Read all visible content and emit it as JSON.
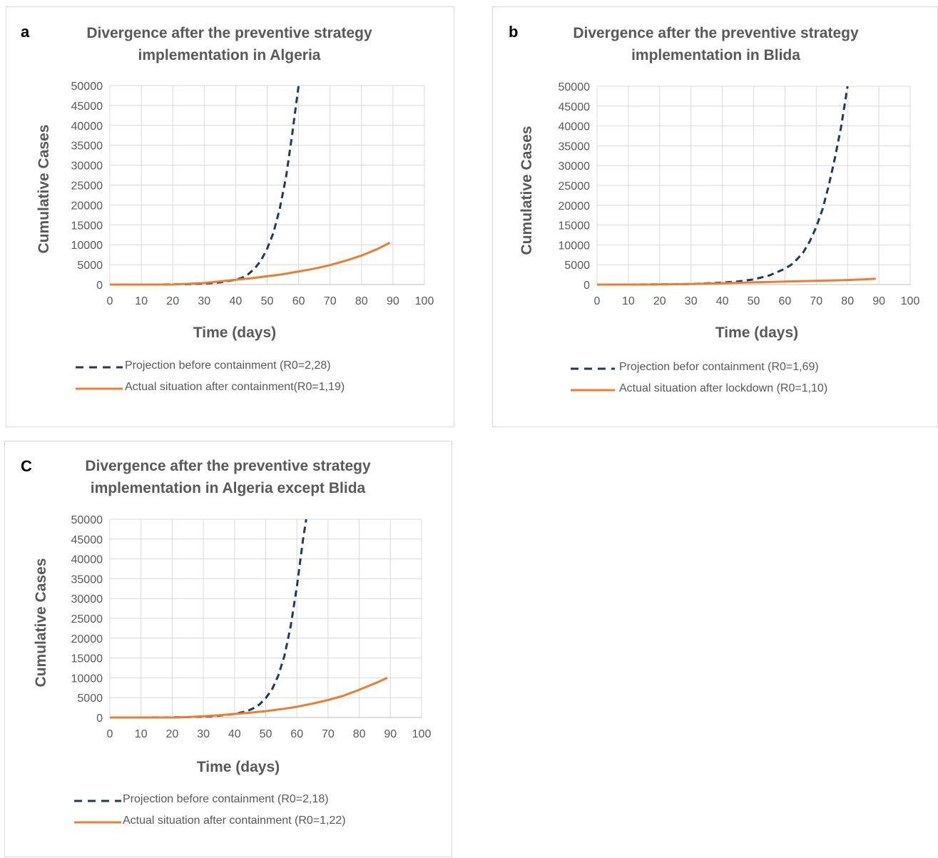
{
  "chart_data": [
    {
      "type": "line",
      "panel_label": "a",
      "title_lines": [
        "Divergence after the preventive strategy",
        "implementation in Algeria"
      ],
      "xlabel": "Time (days)",
      "ylabel": "Cumulative Cases",
      "xlim": [
        0,
        100
      ],
      "ylim": [
        0,
        50000
      ],
      "xticks": [
        "0",
        "10",
        "20",
        "30",
        "40",
        "50",
        "60",
        "70",
        "80",
        "90",
        "100"
      ],
      "yticks": [
        "0",
        "5000",
        "10000",
        "15000",
        "20000",
        "25000",
        "30000",
        "35000",
        "40000",
        "45000",
        "50000"
      ],
      "grid": true,
      "legend_position": "bottom",
      "series": [
        {
          "name": "Projection before containment (R0=2,28)",
          "style": "dashed",
          "color": "#1f3864",
          "x": [
            0,
            5,
            10,
            15,
            20,
            25,
            30,
            35,
            40,
            42,
            44,
            46,
            48,
            50,
            52,
            54,
            56,
            58,
            60
          ],
          "y": [
            0,
            0,
            0,
            0,
            50,
            100,
            250,
            550,
            1200,
            1700,
            2600,
            4000,
            6000,
            9000,
            13000,
            19000,
            27000,
            38000,
            50000
          ]
        },
        {
          "name": "Actual situation after containment(R0=1,19)",
          "style": "solid",
          "color": "#ed7d31",
          "x": [
            0,
            10,
            20,
            25,
            30,
            35,
            40,
            45,
            50,
            55,
            60,
            65,
            70,
            75,
            80,
            85,
            89
          ],
          "y": [
            0,
            0,
            20,
            200,
            400,
            800,
            1200,
            1600,
            2100,
            2600,
            3300,
            4000,
            4900,
            6000,
            7300,
            8900,
            10500
          ]
        }
      ]
    },
    {
      "type": "line",
      "panel_label": "b",
      "title_lines": [
        "Divergence after the preventive strategy",
        "implementation in Blida"
      ],
      "xlabel": "Time (days)",
      "ylabel": "Cumulative Cases",
      "xlim": [
        0,
        100
      ],
      "ylim": [
        0,
        50000
      ],
      "xticks": [
        "0",
        "10",
        "20",
        "30",
        "40",
        "50",
        "60",
        "70",
        "80",
        "90",
        "100"
      ],
      "yticks": [
        "0",
        "5000",
        "10000",
        "15000",
        "20000",
        "25000",
        "30000",
        "35000",
        "40000",
        "45000",
        "50000"
      ],
      "grid": true,
      "legend_position": "bottom",
      "series": [
        {
          "name": "Projection befor containment (R0=1,69)",
          "style": "dashed",
          "color": "#1f3864",
          "x": [
            0,
            10,
            20,
            30,
            35,
            40,
            45,
            50,
            55,
            60,
            62,
            64,
            66,
            68,
            70,
            72,
            74,
            76,
            78,
            80
          ],
          "y": [
            0,
            0,
            50,
            150,
            300,
            500,
            800,
            1300,
            2300,
            4000,
            5000,
            6500,
            8300,
            11000,
            14500,
            19000,
            25000,
            32000,
            40000,
            50000
          ]
        },
        {
          "name": "Actual situation after lockdown (R0=1,10)",
          "style": "solid",
          "color": "#ed7d31",
          "x": [
            0,
            15,
            20,
            30,
            35,
            40,
            45,
            50,
            55,
            60,
            65,
            70,
            75,
            80,
            85,
            89
          ],
          "y": [
            0,
            0,
            50,
            150,
            250,
            350,
            450,
            550,
            650,
            750,
            850,
            950,
            1050,
            1150,
            1300,
            1500
          ]
        }
      ]
    },
    {
      "type": "line",
      "panel_label": "C",
      "title_lines": [
        "Divergence after the preventive strategy",
        "implementation in Algeria except Blida"
      ],
      "xlabel": "Time (days)",
      "ylabel": "Cumulative Cases",
      "xlim": [
        0,
        100
      ],
      "ylim": [
        0,
        50000
      ],
      "xticks": [
        "0",
        "10",
        "20",
        "30",
        "40",
        "50",
        "60",
        "70",
        "80",
        "90",
        "100"
      ],
      "yticks": [
        "0",
        "5000",
        "10000",
        "15000",
        "20000",
        "25000",
        "30000",
        "35000",
        "40000",
        "45000",
        "50000"
      ],
      "grid": true,
      "legend_position": "bottom",
      "series": [
        {
          "name": "Projection before containment (R0=2,18)",
          "style": "dashed",
          "color": "#1f3864",
          "x": [
            0,
            10,
            20,
            30,
            35,
            40,
            44,
            46,
            48,
            50,
            52,
            54,
            56,
            58,
            60,
            62,
            63
          ],
          "y": [
            0,
            0,
            30,
            200,
            450,
            900,
            1600,
            2300,
            3300,
            4900,
            7000,
            10500,
            15500,
            23000,
            33000,
            45000,
            50000
          ]
        },
        {
          "name": "Actual situation after containment (R0=1,22)",
          "style": "solid",
          "color": "#ed7d31",
          "x": [
            0,
            20,
            25,
            30,
            35,
            40,
            45,
            50,
            55,
            60,
            65,
            70,
            75,
            80,
            85,
            89
          ],
          "y": [
            0,
            0,
            100,
            300,
            550,
            900,
            1200,
            1600,
            2100,
            2700,
            3500,
            4400,
            5500,
            7000,
            8600,
            10000
          ]
        }
      ]
    }
  ]
}
